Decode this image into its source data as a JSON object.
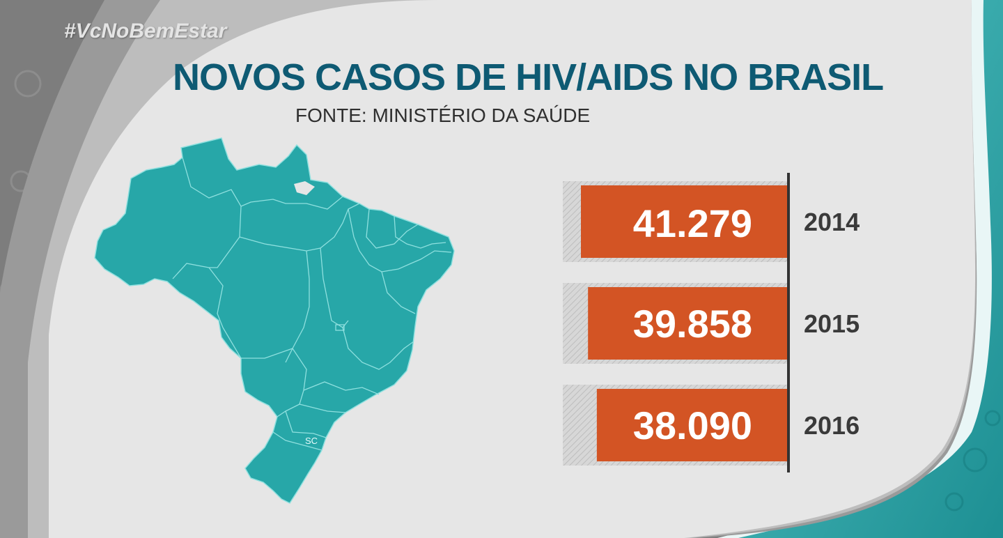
{
  "overlay": {
    "hashtag": "#VcNoBemEstar"
  },
  "map": {
    "state_label": "SC",
    "fill_color": "#27a7a8",
    "border_color": "#8fe0df"
  },
  "colors": {
    "bar": "#d35424",
    "title": "#0e5a73",
    "background": "#e6e6e6",
    "frame_teal": "#2aa5a8"
  },
  "chart_data": {
    "type": "bar",
    "title": "NOVOS CASOS DE HIV/AIDS NO BRASIL",
    "subtitle": "FONTE: MINISTÉRIO DA SAÚDE",
    "categories": [
      "2014",
      "2015",
      "2016"
    ],
    "values": [
      41279,
      39858,
      38090
    ],
    "value_labels": [
      "41.279",
      "39.858",
      "38.090"
    ],
    "orientation": "horizontal",
    "xlabel": "",
    "ylabel": ""
  }
}
